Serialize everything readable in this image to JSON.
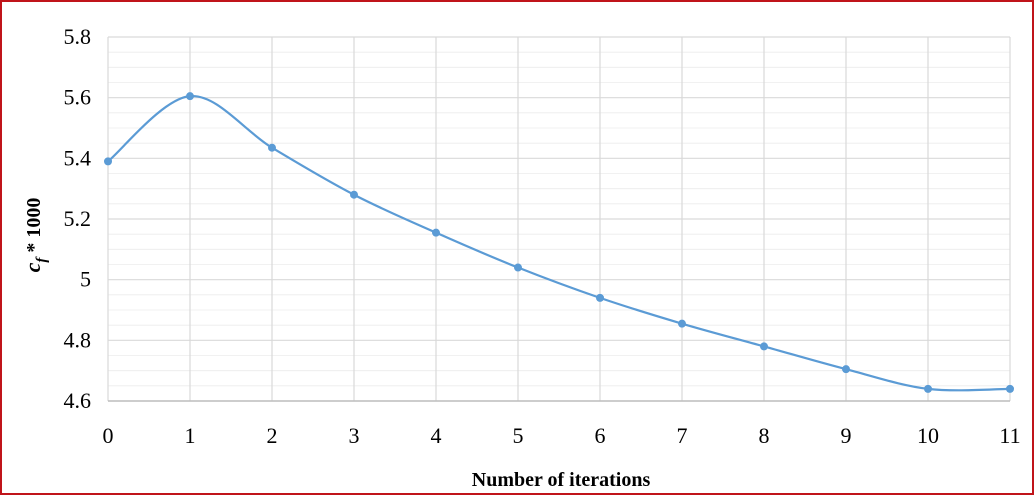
{
  "chart_data": {
    "type": "line",
    "title": "",
    "xlabel": "Number of iterations",
    "ylabel": "c_f * 1000",
    "ylabel_parts": {
      "main": "c",
      "sub": "f",
      "rest": " * 1000"
    },
    "x": [
      0,
      1,
      2,
      3,
      4,
      5,
      6,
      7,
      8,
      9,
      10,
      11
    ],
    "x_tick_labels": [
      "0",
      "1",
      "2",
      "3",
      "4",
      "5",
      "6",
      "7",
      "8",
      "9",
      "10",
      "11"
    ],
    "y_tick_labels": [
      "4.6",
      "4.8",
      "5",
      "5.2",
      "5.4",
      "5.6",
      "5.8"
    ],
    "series": [
      {
        "values": [
          5.39,
          5.605,
          5.435,
          5.28,
          5.155,
          5.04,
          4.94,
          4.855,
          4.78,
          4.705,
          4.64,
          4.64
        ],
        "color": "#5b9bd5",
        "smooth": true,
        "markers": true
      }
    ],
    "xlim": [
      0,
      11
    ],
    "ylim": [
      4.6,
      5.8
    ],
    "grid": true,
    "legend": "none"
  },
  "style": {
    "border_color": "#c0141a",
    "grid_color": "#d9d9d9",
    "series_color": "#5b9bd5"
  }
}
